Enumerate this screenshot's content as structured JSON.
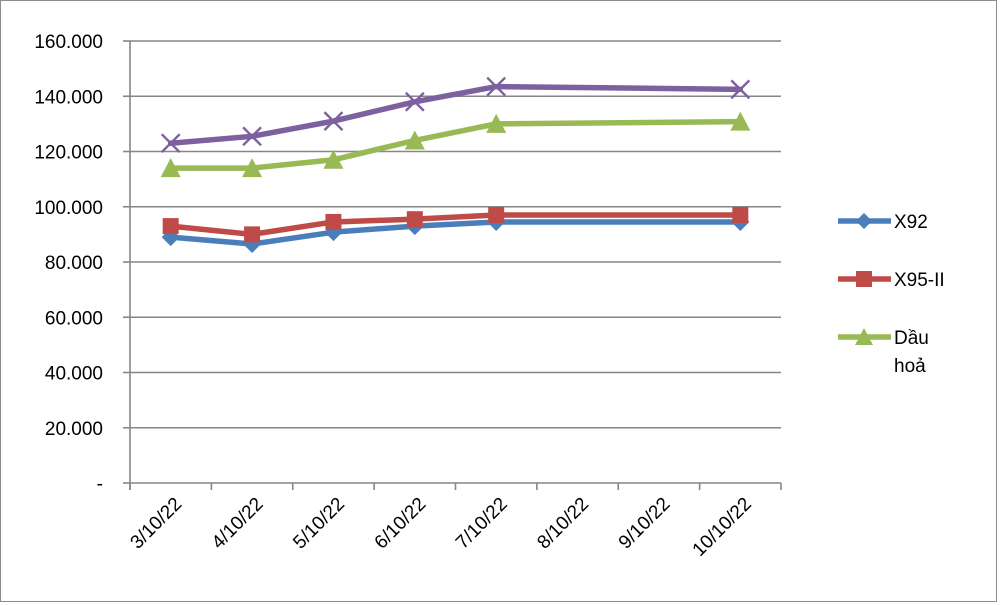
{
  "chart_data": {
    "type": "line",
    "title": "",
    "xlabel": "",
    "ylabel": "",
    "categories": [
      "3/10/22",
      "4/10/22",
      "5/10/22",
      "6/10/22",
      "7/10/22",
      "8/10/22",
      "9/10/22",
      "10/10/22"
    ],
    "y_ticks": [
      "-",
      "20.000",
      "40.000",
      "60.000",
      "80.000",
      "100.000",
      "120.000",
      "140.000",
      "160.000"
    ],
    "ylim": [
      0,
      160000
    ],
    "grid": "horizontal",
    "legend_position": "right",
    "series": [
      {
        "name": "X92",
        "color": "#4a7ebb",
        "marker": "diamond",
        "in_legend": true,
        "points": [
          {
            "x": "3/10/22",
            "y": 89000
          },
          {
            "x": "4/10/22",
            "y": 86500
          },
          {
            "x": "5/10/22",
            "y": 90800
          },
          {
            "x": "6/10/22",
            "y": 93000
          },
          {
            "x": "7/10/22",
            "y": 94500
          },
          {
            "x": "10/10/22",
            "y": 94500
          }
        ]
      },
      {
        "name": "X95-II",
        "color": "#be4b48",
        "marker": "square",
        "in_legend": true,
        "points": [
          {
            "x": "3/10/22",
            "y": 93000
          },
          {
            "x": "4/10/22",
            "y": 90000
          },
          {
            "x": "5/10/22",
            "y": 94500
          },
          {
            "x": "6/10/22",
            "y": 95500
          },
          {
            "x": "7/10/22",
            "y": 97000
          },
          {
            "x": "10/10/22",
            "y": 97000
          }
        ]
      },
      {
        "name": "Dầu hoả",
        "name_lines": [
          "Dầu",
          "hoả"
        ],
        "color": "#98b954",
        "marker": "triangle",
        "in_legend": true,
        "points": [
          {
            "x": "3/10/22",
            "y": 114000
          },
          {
            "x": "4/10/22",
            "y": 114000
          },
          {
            "x": "5/10/22",
            "y": 117000
          },
          {
            "x": "6/10/22",
            "y": 124000
          },
          {
            "x": "7/10/22",
            "y": 130000
          },
          {
            "x": "10/10/22",
            "y": 130800
          }
        ]
      },
      {
        "color": "#7d60a0",
        "marker": "x",
        "in_legend": false,
        "points": [
          {
            "x": "3/10/22",
            "y": 123000
          },
          {
            "x": "4/10/22",
            "y": 125500
          },
          {
            "x": "5/10/22",
            "y": 131000
          },
          {
            "x": "6/10/22",
            "y": 138000
          },
          {
            "x": "7/10/22",
            "y": 143500
          },
          {
            "x": "10/10/22",
            "y": 142500
          }
        ]
      }
    ]
  }
}
